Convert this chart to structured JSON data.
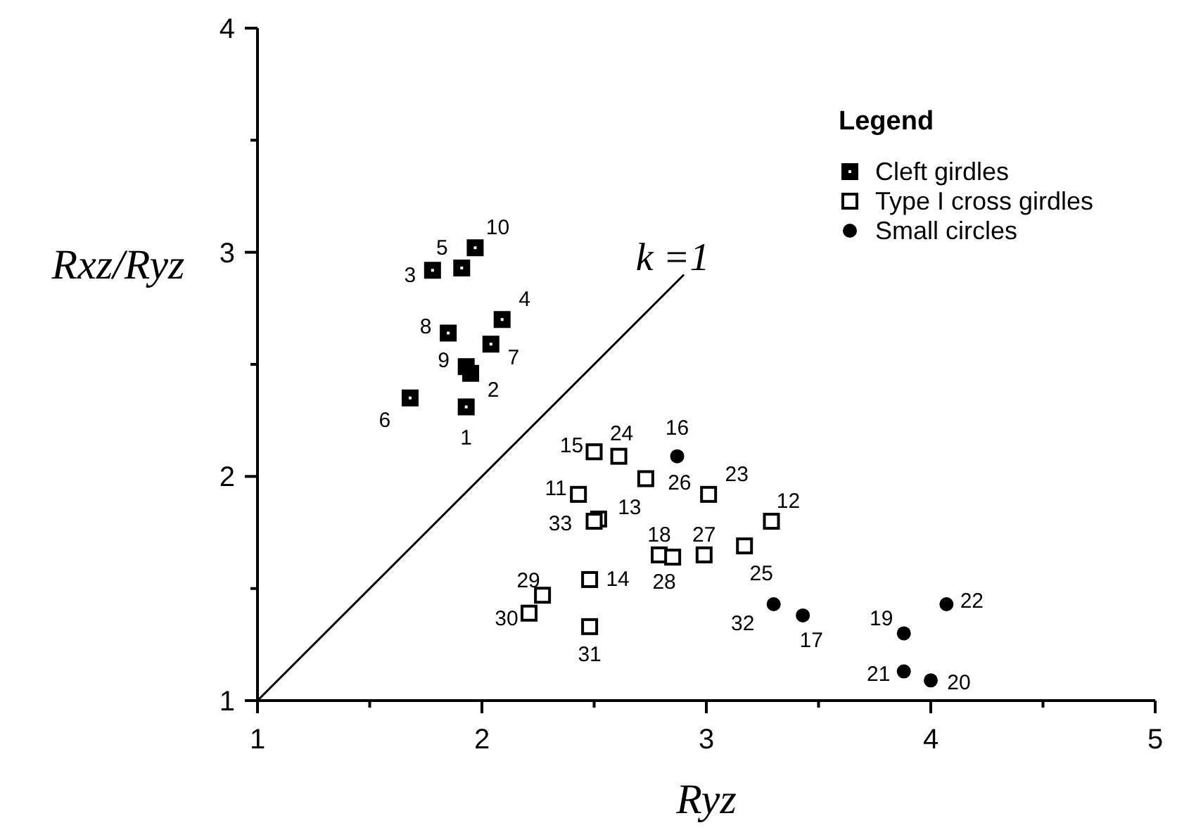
{
  "chart_data": {
    "type": "scatter",
    "xlabel": "Ryz",
    "ylabel": "Rxz/Ryz",
    "legend_title": "Legend",
    "legend": "top right",
    "xlim": [
      1,
      5
    ],
    "ylim": [
      1,
      4
    ],
    "xticks": [
      1,
      {
        "value": 1.5,
        "label": null
      },
      2,
      {
        "value": 2.5,
        "label": null
      },
      3,
      {
        "value": 3.5,
        "label": null
      },
      4,
      {
        "value": 4.5,
        "label": null
      },
      5
    ],
    "yticks": [
      1,
      {
        "value": 1.5,
        "label": null
      },
      2,
      {
        "value": 2.5,
        "label": null
      },
      3,
      {
        "value": 3.5,
        "label": null
      },
      4
    ],
    "series": [
      {
        "name": "Cleft girdles",
        "color": "#000000",
        "marker": "square",
        "x": [
          1.93,
          1.95,
          1.78,
          2.09,
          1.91,
          1.68,
          2.04,
          1.85,
          1.93,
          1.97
        ],
        "values": [
          2.31,
          2.46,
          2.92,
          2.7,
          2.93,
          2.35,
          2.59,
          2.64,
          2.49,
          3.02
        ]
      },
      {
        "name": "Type I cross girdles",
        "color": "#000000",
        "marker": "square",
        "x": [
          2.43,
          3.29,
          2.52,
          2.48,
          2.5,
          2.79,
          3.01,
          2.61,
          3.17,
          2.73,
          2.99,
          2.85,
          2.27,
          2.21,
          2.48,
          2.5
        ],
        "values": [
          1.92,
          1.8,
          1.81,
          1.54,
          2.11,
          1.65,
          1.92,
          2.09,
          1.69,
          1.99,
          1.65,
          1.64,
          1.47,
          1.39,
          1.33,
          1.8
        ]
      },
      {
        "name": "Small circles",
        "color": "#000000",
        "marker": "circle",
        "x": [
          2.87,
          3.43,
          3.88,
          4.0,
          3.88,
          4.07,
          3.3
        ],
        "values": [
          2.09,
          1.38,
          1.3,
          1.09,
          1.13,
          1.43,
          1.43
        ]
      },
      {
        "type": "line",
        "color": "#000000",
        "marker": "none",
        "x": [
          1,
          2.9
        ],
        "values": [
          1,
          2.9
        ]
      }
    ],
    "annotations": [
      {
        "text": "k =1",
        "x": 2.9,
        "y": 2.9
      },
      {
        "text": "1",
        "x": 1.93,
        "y": 2.31
      },
      {
        "text": "2",
        "x": 1.95,
        "y": 2.46
      },
      {
        "text": "3",
        "x": 1.78,
        "y": 2.92
      },
      {
        "text": "4",
        "x": 2.09,
        "y": 2.7
      },
      {
        "text": "5",
        "x": 1.91,
        "y": 2.93
      },
      {
        "text": "6",
        "x": 1.68,
        "y": 2.35
      },
      {
        "text": "7",
        "x": 2.04,
        "y": 2.59
      },
      {
        "text": "8",
        "x": 1.85,
        "y": 2.64
      },
      {
        "text": "9",
        "x": 1.93,
        "y": 2.49
      },
      {
        "text": "10",
        "x": 1.97,
        "y": 3.02
      },
      {
        "text": "11",
        "x": 2.43,
        "y": 1.92
      },
      {
        "text": "12",
        "x": 3.29,
        "y": 1.8
      },
      {
        "text": "13",
        "x": 2.52,
        "y": 1.81
      },
      {
        "text": "14",
        "x": 2.48,
        "y": 1.54
      },
      {
        "text": "15",
        "x": 2.5,
        "y": 2.11
      },
      {
        "text": "16",
        "x": 2.87,
        "y": 2.09
      },
      {
        "text": "17",
        "x": 3.43,
        "y": 1.38
      },
      {
        "text": "18",
        "x": 2.79,
        "y": 1.65
      },
      {
        "text": "19",
        "x": 3.88,
        "y": 1.3
      },
      {
        "text": "20",
        "x": 4.0,
        "y": 1.09
      },
      {
        "text": "21",
        "x": 3.88,
        "y": 1.13
      },
      {
        "text": "22",
        "x": 4.07,
        "y": 1.43
      },
      {
        "text": "23",
        "x": 3.01,
        "y": 1.92
      },
      {
        "text": "24",
        "x": 2.61,
        "y": 2.09
      },
      {
        "text": "25",
        "x": 3.17,
        "y": 1.69
      },
      {
        "text": "26",
        "x": 2.73,
        "y": 1.99
      },
      {
        "text": "27",
        "x": 2.99,
        "y": 1.65
      },
      {
        "text": "28",
        "x": 2.85,
        "y": 1.64
      },
      {
        "text": "29",
        "x": 2.27,
        "y": 1.47
      },
      {
        "text": "30",
        "x": 2.21,
        "y": 1.39
      },
      {
        "text": "31",
        "x": 2.48,
        "y": 1.33
      },
      {
        "text": "32",
        "x": 3.3,
        "y": 1.43
      },
      {
        "text": "33",
        "x": 2.5,
        "y": 1.8
      }
    ]
  }
}
